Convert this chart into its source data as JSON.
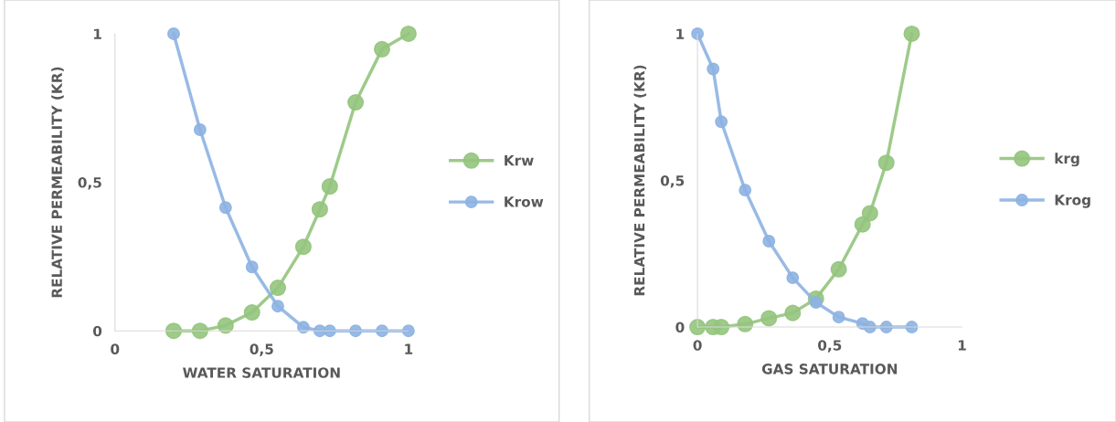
{
  "chart_data": [
    {
      "type": "line",
      "xlabel": "WATER SATURATION",
      "ylabel": "RELATIVE PERMEABILITY (KR)",
      "xlim": [
        0,
        1
      ],
      "ylim": [
        0,
        1
      ],
      "xticks": [
        0,
        {
          "value": 0.5,
          "label": "0,5"
        },
        1
      ],
      "yticks": [
        0,
        {
          "value": 0.5,
          "label": "0,5"
        },
        1
      ],
      "grid": false,
      "legend": "right",
      "marker": "circle",
      "line_style": "solid",
      "x": [
        0.2,
        0.29,
        0.377,
        0.467,
        0.555,
        0.642,
        0.698,
        0.732,
        0.82,
        0.91,
        1.0
      ],
      "series": [
        {
          "name": "Krw",
          "color": "#93c47d",
          "values": [
            0,
            0,
            0.018,
            0.062,
            0.145,
            0.283,
            0.409,
            0.486,
            0.769,
            0.948,
            1
          ]
        },
        {
          "name": "Krow",
          "color": "#8db3e2",
          "values": [
            1,
            0.677,
            0.415,
            0.215,
            0.083,
            0.012,
            0,
            0,
            0,
            0,
            0
          ]
        }
      ]
    },
    {
      "type": "line",
      "xlabel": "GAS SATURATION",
      "ylabel": "RELATIVE PERMEABILITY (KR)",
      "xlim": [
        0,
        1
      ],
      "ylim": [
        0,
        1
      ],
      "xticks": [
        0,
        {
          "value": 0.5,
          "label": "0,5"
        },
        1
      ],
      "yticks": [
        0,
        {
          "value": 0.5,
          "label": "0,5"
        },
        1
      ],
      "grid": false,
      "legend": "right",
      "marker": "circle",
      "line_style": "solid",
      "x": [
        0,
        0.059,
        0.09,
        0.18,
        0.27,
        0.36,
        0.448,
        0.534,
        0.624,
        0.652,
        0.714,
        0.81
      ],
      "series": [
        {
          "name": "krg",
          "color": "#93c47d",
          "values": [
            0,
            0,
            0,
            0.01,
            0.03,
            0.048,
            0.097,
            0.197,
            0.35,
            0.388,
            0.56,
            1
          ]
        },
        {
          "name": "Krog",
          "color": "#8db3e2",
          "values": [
            1,
            0.88,
            0.7,
            0.467,
            0.293,
            0.168,
            0.084,
            0.034,
            0.012,
            0,
            0,
            0
          ]
        }
      ]
    }
  ]
}
